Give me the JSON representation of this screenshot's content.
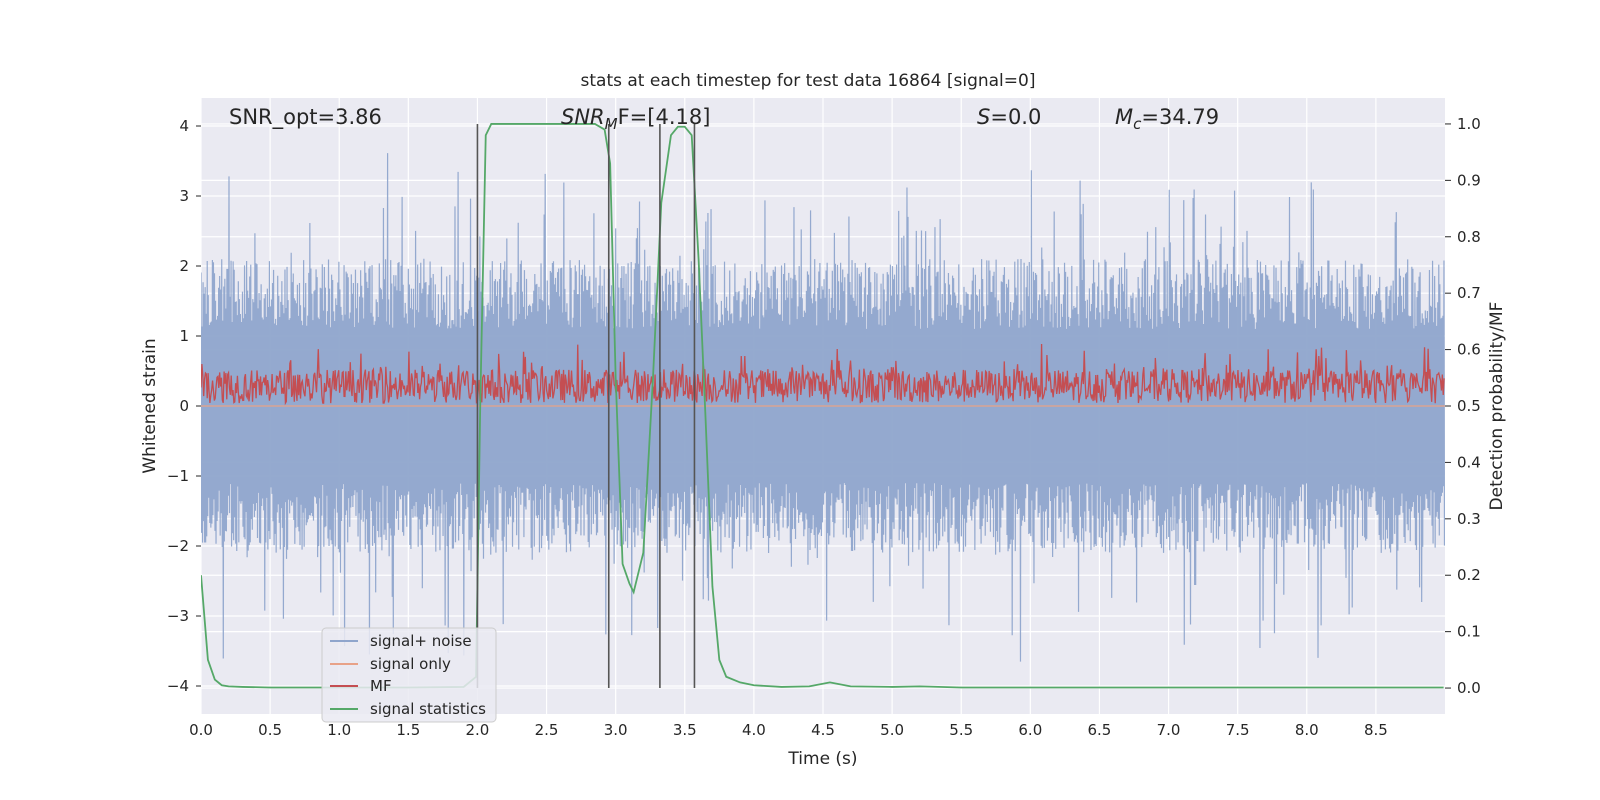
{
  "chart_data": {
    "type": "line",
    "title": "stats at each timestep for test data 16864 [signal=0]",
    "xlabel": "Time (s)",
    "ylabel_left": "Whitened strain",
    "ylabel_right": "Detection probability/MF",
    "xlim": [
      0.0,
      9.0
    ],
    "ylim_left": [
      -4.4,
      4.4
    ],
    "ylim_right": [
      -0.046,
      1.046
    ],
    "x_ticks": [
      "0.0",
      "0.5",
      "1.0",
      "1.5",
      "2.0",
      "2.5",
      "3.0",
      "3.5",
      "4.0",
      "4.5",
      "5.0",
      "5.5",
      "6.0",
      "6.5",
      "7.0",
      "7.5",
      "8.0",
      "8.5"
    ],
    "y_left_ticks": [
      "−4",
      "−3",
      "−2",
      "−1",
      "0",
      "1",
      "2",
      "3",
      "4"
    ],
    "y_right_ticks": [
      "0.0",
      "0.1",
      "0.2",
      "0.3",
      "0.4",
      "0.5",
      "0.6",
      "0.7",
      "0.8",
      "0.9",
      "1.0"
    ],
    "grid": true,
    "legend_position": "lower-left",
    "annotations": {
      "snr_opt": "SNR_opt=3.86",
      "snr_mf_base": "SNR",
      "snr_mf_sub": "M",
      "snr_mf_rest": "F=[4.18]",
      "s_var": "S",
      "s_val": "=0.0",
      "mc_var": "M",
      "mc_sub": "c",
      "mc_val": "=34.79"
    },
    "vertical_lines_x": [
      2.0,
      2.95,
      3.32,
      3.57
    ],
    "series": [
      {
        "name": "signal+ noise",
        "axis": "left",
        "color": "#8fa5cc",
        "style": "dense noise, approx |amplitude| 1.2-2.7, spikes to 3.9",
        "amplitude_range": [
          -3.9,
          3.9
        ]
      },
      {
        "name": "signal only",
        "axis": "left",
        "color": "#e8a288",
        "values_constant": 0.0
      },
      {
        "name": "MF",
        "axis": "right",
        "color": "#c44e52",
        "style": "noise band around 0.55",
        "value_range": [
          0.5,
          0.61
        ]
      },
      {
        "name": "signal statistics",
        "axis": "right",
        "color": "#55a868",
        "x": [
          0.0,
          0.05,
          0.1,
          0.15,
          0.2,
          0.3,
          0.5,
          1.0,
          1.5,
          1.9,
          1.99,
          2.02,
          2.06,
          2.1,
          2.5,
          2.85,
          2.92,
          2.96,
          3.0,
          3.05,
          3.1,
          3.13,
          3.2,
          3.27,
          3.33,
          3.4,
          3.45,
          3.5,
          3.55,
          3.6,
          3.65,
          3.7,
          3.75,
          3.8,
          3.9,
          4.0,
          4.2,
          4.4,
          4.55,
          4.7,
          5.0,
          5.2,
          5.5,
          6.0,
          7.0,
          8.0,
          8.99
        ],
        "y": [
          0.2,
          0.05,
          0.015,
          0.005,
          0.003,
          0.002,
          0.001,
          0.001,
          0.001,
          0.002,
          0.02,
          0.5,
          0.98,
          1.0,
          1.0,
          1.0,
          0.99,
          0.93,
          0.55,
          0.22,
          0.185,
          0.17,
          0.24,
          0.55,
          0.86,
          0.98,
          0.995,
          0.995,
          0.98,
          0.76,
          0.48,
          0.18,
          0.05,
          0.02,
          0.01,
          0.005,
          0.002,
          0.003,
          0.01,
          0.003,
          0.002,
          0.003,
          0.001,
          0.001,
          0.001,
          0.001,
          0.001
        ]
      }
    ]
  }
}
